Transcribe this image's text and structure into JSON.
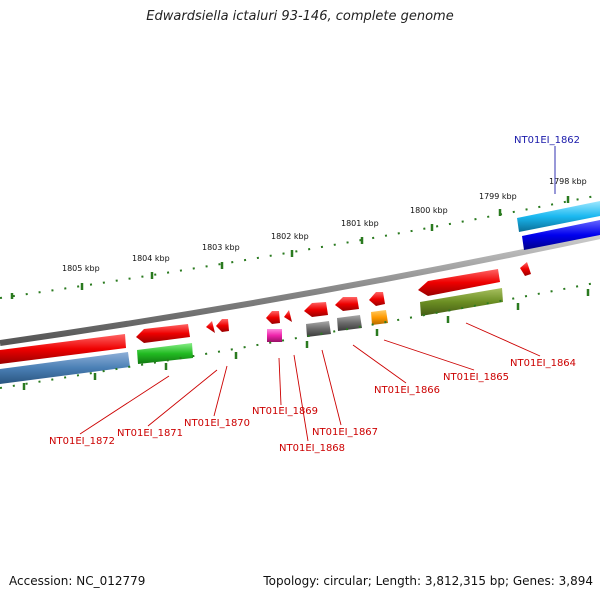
{
  "title": "Edwardsiella ictaluri 93-146, complete genome",
  "footer": {
    "accession": "Accession: NC_012779",
    "stats": "Topology: circular; Length: 3,812,315 bp; Genes: 3,894"
  },
  "colors": {
    "backbone": "#888888",
    "tick": "#2a7a1f",
    "label_forward": "#cc0000",
    "label_highlight": "#1a1aaa"
  },
  "ruler_labels": [
    "1805 kbp",
    "1804 kbp",
    "1803 kbp",
    "1802 kbp",
    "1801 kbp",
    "1800 kbp",
    "1799 kbp",
    "1798 kbp"
  ],
  "gene_labels": [
    {
      "name": "NT01EI_1862",
      "kind": "highlight"
    },
    {
      "name": "NT01EI_1864",
      "kind": "normal"
    },
    {
      "name": "NT01EI_1865",
      "kind": "normal"
    },
    {
      "name": "NT01EI_1866",
      "kind": "normal"
    },
    {
      "name": "NT01EI_1867",
      "kind": "normal"
    },
    {
      "name": "NT01EI_1868",
      "kind": "normal"
    },
    {
      "name": "NT01EI_1869",
      "kind": "normal"
    },
    {
      "name": "NT01EI_1870",
      "kind": "normal"
    },
    {
      "name": "NT01EI_1871",
      "kind": "normal"
    },
    {
      "name": "NT01EI_1872",
      "kind": "normal"
    }
  ]
}
